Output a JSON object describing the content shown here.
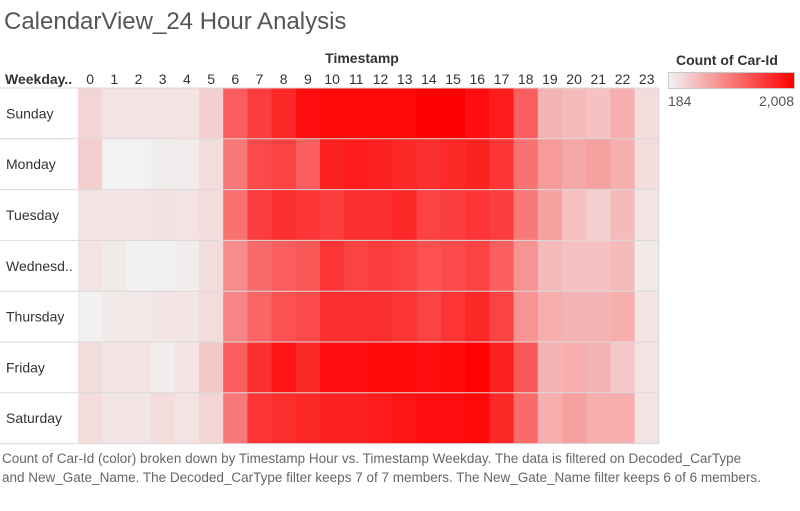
{
  "title": "CalendarView_24 Hour Analysis",
  "caption": "Count of Car-Id (color) broken down by Timestamp Hour vs. Timestamp Weekday.  The data is filtered on Decoded_CarType and New_Gate_Name. The Decoded_CarType filter keeps 7 of 7 members. The New_Gate_Name filter keeps 6 of 6 members.",
  "legend": {
    "title": "Count of Car-Id",
    "min_label": "184",
    "max_label": "2,008"
  },
  "colors": {
    "low": "#f2f2f2",
    "high": "#ff0000",
    "divider": "#d9d9d9"
  },
  "chart_data": {
    "type": "heatmap",
    "title": "CalendarView_24 Hour Analysis",
    "xlabel": "Timestamp",
    "ylabel_header": "Weekday..",
    "x_categories": [
      "0",
      "1",
      "2",
      "3",
      "4",
      "5",
      "6",
      "7",
      "8",
      "9",
      "10",
      "11",
      "12",
      "13",
      "14",
      "15",
      "16",
      "17",
      "18",
      "19",
      "20",
      "21",
      "22",
      "23"
    ],
    "y_categories": [
      "Sunday",
      "Monday",
      "Tuesday",
      "Wednesd..",
      "Thursday",
      "Friday",
      "Saturday"
    ],
    "value_range": [
      184,
      2008
    ],
    "values": [
      [
        400,
        300,
        300,
        300,
        300,
        450,
        1300,
        1550,
        1700,
        1900,
        1950,
        1950,
        1950,
        1950,
        2008,
        2008,
        1900,
        1800,
        1300,
        650,
        600,
        550,
        700,
        350
      ],
      [
        450,
        184,
        184,
        220,
        240,
        350,
        1100,
        1450,
        1500,
        1300,
        1750,
        1800,
        1750,
        1700,
        1650,
        1700,
        1750,
        1600,
        1150,
        850,
        750,
        800,
        700,
        350
      ],
      [
        300,
        280,
        280,
        320,
        300,
        350,
        1150,
        1550,
        1650,
        1600,
        1550,
        1650,
        1650,
        1700,
        1500,
        1550,
        1600,
        1550,
        1100,
        800,
        550,
        450,
        600,
        300
      ],
      [
        300,
        250,
        200,
        200,
        220,
        350,
        950,
        1200,
        1300,
        1350,
        1600,
        1500,
        1550,
        1500,
        1400,
        1450,
        1500,
        1300,
        900,
        600,
        550,
        550,
        600,
        250
      ],
      [
        200,
        250,
        250,
        280,
        280,
        350,
        1000,
        1250,
        1400,
        1450,
        1650,
        1650,
        1650,
        1600,
        1500,
        1600,
        1700,
        1500,
        900,
        700,
        650,
        650,
        700,
        300
      ],
      [
        350,
        300,
        300,
        220,
        280,
        500,
        1300,
        1650,
        1850,
        1700,
        1900,
        1900,
        1950,
        1950,
        1900,
        1950,
        2000,
        1750,
        1350,
        650,
        700,
        650,
        500,
        300
      ],
      [
        350,
        280,
        280,
        350,
        300,
        400,
        1100,
        1600,
        1650,
        1700,
        1750,
        1750,
        1800,
        1850,
        1900,
        1900,
        1950,
        1700,
        1200,
        700,
        800,
        700,
        700,
        300
      ]
    ]
  }
}
